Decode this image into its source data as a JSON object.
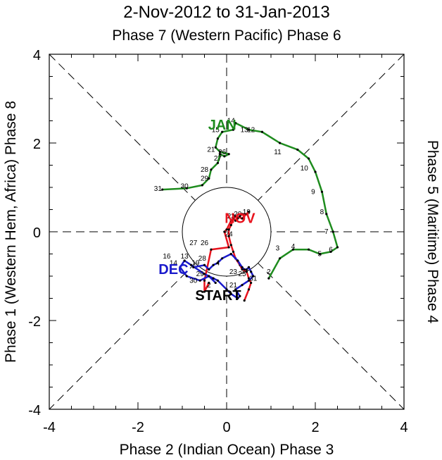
{
  "chart_data": {
    "type": "line",
    "title": "2-Nov-2012 to 31-Jan-2013",
    "top_label": "Phase 7 (Western Pacific) Phase 6",
    "bottom_label": "Phase 2 (Indian Ocean) Phase 3",
    "left_label": "Phase 1 (Western Hem, Africa) Phase 8",
    "right_label": "Phase 5 (Maritime) Phase 4",
    "xlabel": "",
    "ylabel": "",
    "xlim": [
      -4,
      4
    ],
    "ylim": [
      -4,
      4
    ],
    "x_ticks": [
      "-4",
      "-2",
      "0",
      "2",
      "4"
    ],
    "y_ticks": [
      "-4",
      "-2",
      "0",
      "2",
      "4"
    ],
    "unit_circle_radius": 1,
    "start_label": "START",
    "colors": {
      "nov": "#e8141e",
      "dec": "#1a1acc",
      "jan": "#1e8c1e",
      "axes": "#000000"
    },
    "series": [
      {
        "name": "NOV",
        "color": "#e8141e",
        "label_position": {
          "x": 0.3,
          "y": 0.2
        },
        "x": [
          0.4,
          0.5,
          0.55,
          0.5,
          0.45,
          0.35,
          0.3,
          0.2,
          0.15,
          0.1,
          0.05,
          0.05,
          0.1,
          0.15,
          0.2,
          0.25,
          0.3,
          0.35,
          0.45,
          0.5,
          0.35,
          0.2,
          0.1,
          0.0,
          -0.05,
          0.05,
          -0.35,
          -0.5,
          -0.5,
          -0.4
        ],
        "y": [
          -1.55,
          -1.3,
          -1.15,
          -1.05,
          -0.9,
          -0.85,
          -0.75,
          -0.6,
          -0.45,
          -0.3,
          -0.1,
          0.05,
          0.15,
          0.3,
          0.25,
          0.3,
          0.35,
          0.4,
          0.4,
          0.45,
          0.3,
          0.35,
          0.25,
          0.05,
          0.0,
          -0.35,
          -0.4,
          -1.1,
          -1.35,
          -1.15
        ],
        "day_labels": []
      },
      {
        "name": "DEC",
        "color": "#1a1acc",
        "label_position": {
          "x": -1.2,
          "y": -0.95
        },
        "x": [
          -0.75,
          -0.5,
          -0.4,
          -0.3,
          -0.2,
          -0.1,
          0.1,
          0.25,
          0.35,
          0.4,
          0.45,
          0.5,
          0.55,
          0.6,
          0.5,
          0.35,
          0.2,
          0.3,
          0.25,
          0.1,
          0.0,
          -0.2,
          -0.3,
          -0.5,
          -0.8,
          -0.95,
          -1.05,
          -0.9,
          -0.6,
          -0.4,
          -0.25
        ],
        "y": [
          -0.8,
          -0.75,
          -0.85,
          -0.75,
          -0.7,
          -0.6,
          -0.5,
          -0.65,
          -0.8,
          -0.85,
          -0.85,
          -0.8,
          -0.9,
          -1.0,
          -1.1,
          -1.2,
          -1.3,
          -1.45,
          -1.5,
          -1.4,
          -1.3,
          -1.1,
          -1.05,
          -0.95,
          -0.75,
          -0.65,
          -0.8,
          -1.0,
          -1.1,
          -1.0,
          -1.15
        ],
        "day_labels": [
          {
            "text": "31",
            "x": 0.6,
            "y": -1.1
          },
          {
            "text": "2",
            "x": 0.95,
            "y": -0.95
          },
          {
            "text": "16",
            "x": -1.35,
            "y": -0.6
          },
          {
            "text": "13",
            "x": -0.95,
            "y": -0.6
          },
          {
            "text": "14",
            "x": -1.2,
            "y": -0.75
          },
          {
            "text": "19",
            "x": -0.7,
            "y": -0.75
          },
          {
            "text": "28",
            "x": -0.55,
            "y": -0.65
          },
          {
            "text": "29",
            "x": -0.6,
            "y": -1.0
          },
          {
            "text": "30",
            "x": -0.75,
            "y": -1.15
          },
          {
            "text": "2",
            "x": -0.4,
            "y": -1.25
          },
          {
            "text": "4",
            "x": -0.2,
            "y": -0.75
          },
          {
            "text": "27",
            "x": -0.75,
            "y": -0.3
          },
          {
            "text": "26",
            "x": -0.5,
            "y": -0.3
          },
          {
            "text": "22",
            "x": 0.1,
            "y": 0.3
          },
          {
            "text": "20",
            "x": 0.25,
            "y": 0.35
          },
          {
            "text": "19",
            "x": 0.45,
            "y": 0.4
          },
          {
            "text": "24",
            "x": 0.05,
            "y": -0.1
          },
          {
            "text": "23",
            "x": 0.15,
            "y": -0.95
          },
          {
            "text": "25",
            "x": 0.35,
            "y": -1.0
          },
          {
            "text": "21",
            "x": 0.15,
            "y": -1.25
          }
        ]
      },
      {
        "name": "JAN",
        "color": "#1e8c1e",
        "label_position": {
          "x": -0.1,
          "y": 2.3
        },
        "x": [
          0.95,
          1.2,
          1.5,
          1.85,
          2.1,
          2.35,
          2.5,
          2.4,
          2.25,
          2.15,
          2.0,
          1.85,
          1.6,
          1.2,
          0.8,
          0.5,
          0.2,
          0.15,
          -0.1,
          -0.2,
          -0.25,
          -0.15,
          0.05,
          -0.05,
          -0.15,
          -0.2,
          -0.35,
          -0.4,
          -0.55,
          -0.9,
          -1.45
        ],
        "y": [
          -1.05,
          -0.6,
          -0.4,
          -0.4,
          -0.5,
          -0.45,
          -0.35,
          0.0,
          0.4,
          0.9,
          1.35,
          1.65,
          1.85,
          2.0,
          2.25,
          2.3,
          2.45,
          2.3,
          2.25,
          2.1,
          1.9,
          1.8,
          1.75,
          1.7,
          1.75,
          1.55,
          1.4,
          1.2,
          1.05,
          0.98,
          0.95
        ],
        "day_labels": [
          {
            "text": "3",
            "x": 1.15,
            "y": -0.42
          },
          {
            "text": "4",
            "x": 1.5,
            "y": -0.38
          },
          {
            "text": "5",
            "x": 2.1,
            "y": -0.55
          },
          {
            "text": "6",
            "x": 2.35,
            "y": -0.45
          },
          {
            "text": "7",
            "x": 2.25,
            "y": -0.05
          },
          {
            "text": "8",
            "x": 2.15,
            "y": 0.4
          },
          {
            "text": "9",
            "x": 1.95,
            "y": 0.85
          },
          {
            "text": "10",
            "x": 1.75,
            "y": 1.38
          },
          {
            "text": "11",
            "x": 1.15,
            "y": 1.75
          },
          {
            "text": "12",
            "x": 0.55,
            "y": 2.25
          },
          {
            "text": "13",
            "x": 0.4,
            "y": 2.25
          },
          {
            "text": "14",
            "x": 0.1,
            "y": 2.45
          },
          {
            "text": "15",
            "x": -0.25,
            "y": 2.25
          },
          {
            "text": "28",
            "x": -0.5,
            "y": 1.35
          },
          {
            "text": "29",
            "x": -0.5,
            "y": 1.15
          },
          {
            "text": "30",
            "x": -0.95,
            "y": 0.98
          },
          {
            "text": "31",
            "x": -1.55,
            "y": 0.92
          },
          {
            "text": "27",
            "x": -0.2,
            "y": 1.6
          },
          {
            "text": "26",
            "x": -0.1,
            "y": 1.75
          },
          {
            "text": "21",
            "x": -0.35,
            "y": 1.8
          }
        ]
      }
    ]
  }
}
